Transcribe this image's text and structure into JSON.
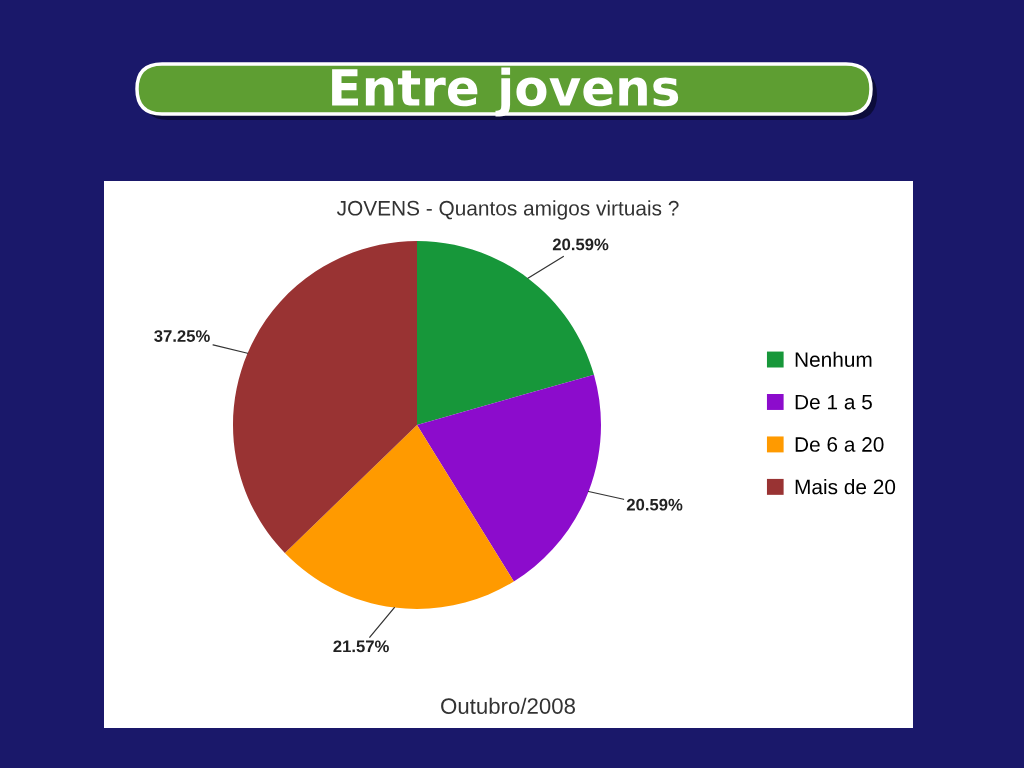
{
  "chart_data": {
    "type": "pie",
    "title": "Entre jovens",
    "subtitle": "JOVENS - Quantos amigos virtuais ?",
    "categories": [
      "Nenhum",
      "De 1 a 5",
      "De 6 a 20",
      "Mais de 20"
    ],
    "values": [
      20.59,
      20.59,
      21.57,
      37.25
    ],
    "value_labels": [
      "20.59%",
      "20.59%",
      "21.57%",
      "37.25%"
    ],
    "colors": [
      "#17973a",
      "#8c0ccc",
      "#ff9a00",
      "#993333"
    ],
    "legend": "right",
    "annotations": [
      "Outubro/2008"
    ]
  }
}
